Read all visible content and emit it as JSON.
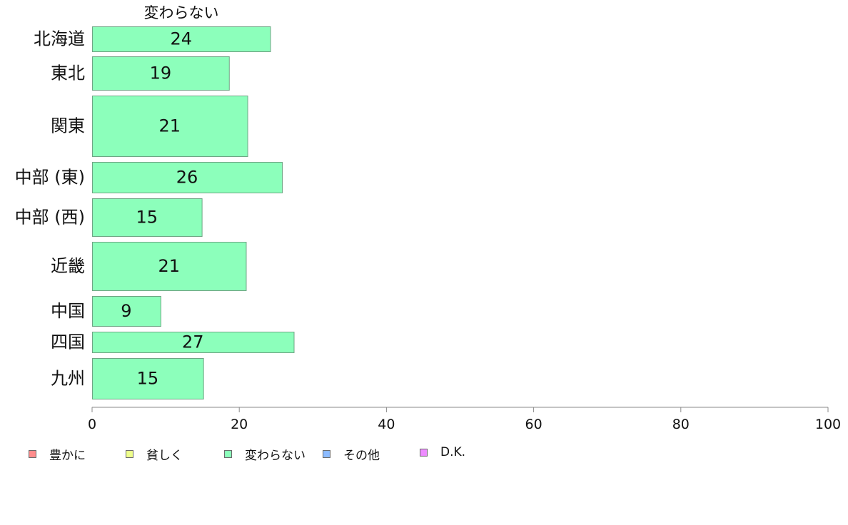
{
  "chart_data": {
    "type": "bar",
    "orientation": "horizontal",
    "title": "変わらない",
    "categories": [
      "北海道",
      "東北",
      "関東",
      "中部 (東)",
      "中部 (西)",
      "近畿",
      "中国",
      "四国",
      "九州"
    ],
    "series": [
      {
        "name": "変わらない",
        "color": "#8cffbb",
        "values": [
          24.2,
          18.6,
          21.1,
          25.8,
          14.9,
          20.9,
          9.3,
          27.4,
          15.1
        ],
        "data_labels": [
          "24",
          "19",
          "21",
          "26",
          "15",
          "21",
          "9",
          "27",
          "15"
        ]
      }
    ],
    "xlim": [
      0,
      100
    ],
    "xticks": [
      0,
      20,
      40,
      60,
      80,
      100
    ],
    "xtick_labels": [
      "0",
      "20",
      "40",
      "60",
      "80",
      "100"
    ],
    "grid": false,
    "legend_position": "bottom-left"
  },
  "legend": [
    {
      "label": "豊かに",
      "color": "#ff8c8c"
    },
    {
      "label": "貧しく",
      "color": "#eeff8c"
    },
    {
      "label": "変わらない",
      "color": "#8cffbb"
    },
    {
      "label": "その他",
      "color": "#8cbbff"
    },
    {
      "label": "D.K.",
      "color": "#ee8cff"
    }
  ]
}
